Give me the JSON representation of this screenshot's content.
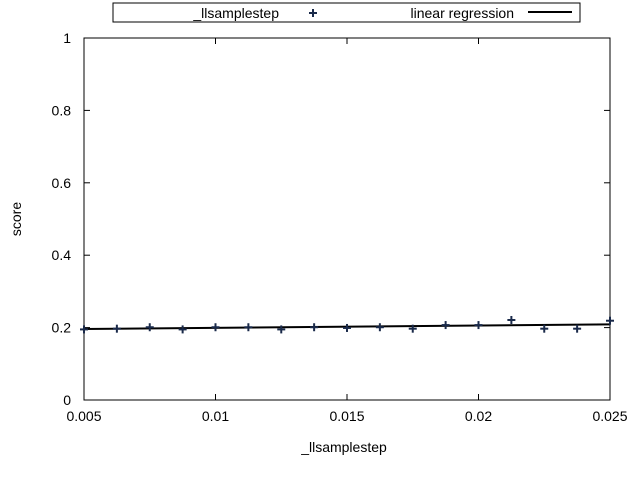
{
  "chart_data": {
    "type": "scatter",
    "title": "",
    "xlabel": "_llsamplestep",
    "ylabel": "score",
    "xlim": [
      0.005,
      0.025
    ],
    "ylim": [
      0,
      1
    ],
    "x_ticks": [
      "0.005",
      "0.01",
      "0.015",
      "0.02",
      "0.025"
    ],
    "y_ticks": [
      "0",
      "0.2",
      "0.4",
      "0.6",
      "0.8",
      "1"
    ],
    "grid": false,
    "legend_position": "top",
    "series": [
      {
        "name": "_llsamplestep",
        "type": "scatter",
        "marker": "plus",
        "color": "#1a2a4a",
        "x": [
          0.005,
          0.00625,
          0.0075,
          0.00875,
          0.01,
          0.01125,
          0.0125,
          0.01375,
          0.015,
          0.01625,
          0.0175,
          0.01875,
          0.02,
          0.02125,
          0.0225,
          0.02375,
          0.025
        ],
        "y": [
          0.195,
          0.197,
          0.201,
          0.195,
          0.201,
          0.201,
          0.195,
          0.201,
          0.199,
          0.201,
          0.197,
          0.207,
          0.207,
          0.221,
          0.197,
          0.197,
          0.219
        ]
      },
      {
        "name": "linear regression",
        "type": "line",
        "color": "#000000",
        "x": [
          0.005,
          0.025
        ],
        "y": [
          0.196,
          0.209
        ]
      }
    ]
  }
}
